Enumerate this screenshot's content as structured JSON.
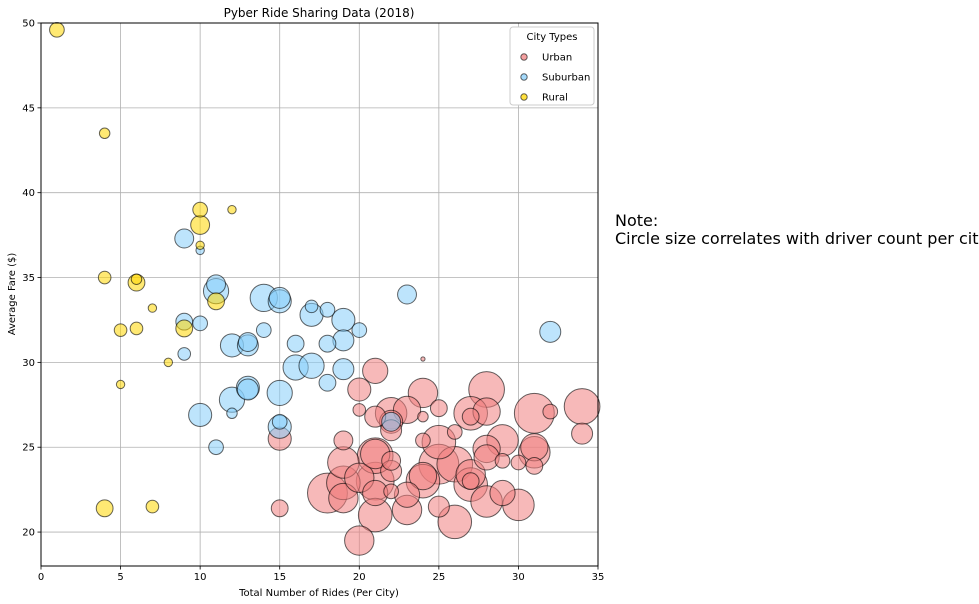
{
  "note": {
    "line1": "Note:",
    "line2": "Circle size correlates with driver count per city."
  },
  "chart_data": {
    "type": "scatter",
    "title": "Pyber Ride Sharing Data (2018)",
    "xlabel": "Total Number of Rides (Per City)",
    "ylabel": "Average Fare ($)",
    "xlim": [
      0,
      35
    ],
    "ylim": [
      18,
      50
    ],
    "xticks": [
      0,
      5,
      10,
      15,
      20,
      25,
      30,
      35
    ],
    "yticks": [
      20,
      25,
      30,
      35,
      40,
      45,
      50
    ],
    "grid": true,
    "legend": {
      "title": "City Types",
      "placement": "top-right"
    },
    "series": [
      {
        "name": "Urban",
        "color": "#F08080",
        "points": [
          {
            "x": 20,
            "y": 19.5,
            "size": 14
          },
          {
            "x": 15,
            "y": 21.4,
            "size": 8
          },
          {
            "x": 21,
            "y": 21.0,
            "size": 16
          },
          {
            "x": 26,
            "y": 20.6,
            "size": 16
          },
          {
            "x": 18,
            "y": 22.3,
            "size": 19
          },
          {
            "x": 19,
            "y": 22.0,
            "size": 14
          },
          {
            "x": 22,
            "y": 22.4,
            "size": 7
          },
          {
            "x": 23,
            "y": 22.2,
            "size": 12
          },
          {
            "x": 23,
            "y": 21.3,
            "size": 14
          },
          {
            "x": 25,
            "y": 21.5,
            "size": 10
          },
          {
            "x": 28,
            "y": 21.8,
            "size": 15
          },
          {
            "x": 29,
            "y": 22.3,
            "size": 12
          },
          {
            "x": 30,
            "y": 21.6,
            "size": 15
          },
          {
            "x": 21,
            "y": 22.3,
            "size": 12
          },
          {
            "x": 19,
            "y": 22.9,
            "size": 16
          },
          {
            "x": 20,
            "y": 23.2,
            "size": 14
          },
          {
            "x": 21,
            "y": 23.0,
            "size": 18
          },
          {
            "x": 22,
            "y": 23.6,
            "size": 10
          },
          {
            "x": 24,
            "y": 23.0,
            "size": 16
          },
          {
            "x": 24,
            "y": 23.3,
            "size": 13
          },
          {
            "x": 25,
            "y": 24.0,
            "size": 19
          },
          {
            "x": 26,
            "y": 24.0,
            "size": 17
          },
          {
            "x": 27,
            "y": 22.8,
            "size": 16
          },
          {
            "x": 27,
            "y": 23.0,
            "size": 8
          },
          {
            "x": 27,
            "y": 23.4,
            "size": 14
          },
          {
            "x": 28,
            "y": 24.4,
            "size": 12
          },
          {
            "x": 29,
            "y": 24.2,
            "size": 7
          },
          {
            "x": 30,
            "y": 24.1,
            "size": 7
          },
          {
            "x": 31,
            "y": 23.9,
            "size": 8
          },
          {
            "x": 31,
            "y": 24.7,
            "size": 15
          },
          {
            "x": 31,
            "y": 25.0,
            "size": 13
          },
          {
            "x": 19,
            "y": 24.1,
            "size": 15
          },
          {
            "x": 21,
            "y": 24.5,
            "size": 17
          },
          {
            "x": 21,
            "y": 24.6,
            "size": 14
          },
          {
            "x": 22,
            "y": 24.2,
            "size": 9
          },
          {
            "x": 24,
            "y": 25.4,
            "size": 7
          },
          {
            "x": 25,
            "y": 25.3,
            "size": 16
          },
          {
            "x": 26,
            "y": 25.9,
            "size": 7
          },
          {
            "x": 28,
            "y": 24.9,
            "size": 13
          },
          {
            "x": 29,
            "y": 25.4,
            "size": 15
          },
          {
            "x": 15,
            "y": 25.5,
            "size": 11
          },
          {
            "x": 19,
            "y": 25.4,
            "size": 9
          },
          {
            "x": 22,
            "y": 26.0,
            "size": 10
          },
          {
            "x": 22,
            "y": 26.5,
            "size": 11
          },
          {
            "x": 22,
            "y": 27.0,
            "size": 15
          },
          {
            "x": 20,
            "y": 27.2,
            "size": 6
          },
          {
            "x": 21,
            "y": 26.8,
            "size": 10
          },
          {
            "x": 23,
            "y": 27.2,
            "size": 13
          },
          {
            "x": 24,
            "y": 26.8,
            "size": 5
          },
          {
            "x": 25,
            "y": 27.3,
            "size": 8
          },
          {
            "x": 27,
            "y": 27.0,
            "size": 16
          },
          {
            "x": 27,
            "y": 26.8,
            "size": 8
          },
          {
            "x": 28,
            "y": 27.1,
            "size": 13
          },
          {
            "x": 31,
            "y": 27.0,
            "size": 19
          },
          {
            "x": 32,
            "y": 27.1,
            "size": 7
          },
          {
            "x": 34,
            "y": 27.4,
            "size": 17
          },
          {
            "x": 34,
            "y": 25.8,
            "size": 10
          },
          {
            "x": 20,
            "y": 28.4,
            "size": 11
          },
          {
            "x": 24,
            "y": 28.2,
            "size": 14
          },
          {
            "x": 28,
            "y": 28.4,
            "size": 17
          },
          {
            "x": 21,
            "y": 29.5,
            "size": 12
          },
          {
            "x": 24,
            "y": 30.2,
            "size": 2
          }
        ]
      },
      {
        "name": "Suburban",
        "color": "#87CEFA",
        "points": [
          {
            "x": 9,
            "y": 37.3,
            "size": 9
          },
          {
            "x": 10,
            "y": 36.6,
            "size": 4
          },
          {
            "x": 11,
            "y": 34.6,
            "size": 9
          },
          {
            "x": 11,
            "y": 34.2,
            "size": 12
          },
          {
            "x": 14,
            "y": 33.8,
            "size": 13
          },
          {
            "x": 15,
            "y": 33.8,
            "size": 10
          },
          {
            "x": 15,
            "y": 33.6,
            "size": 11
          },
          {
            "x": 17,
            "y": 33.3,
            "size": 6
          },
          {
            "x": 17,
            "y": 32.8,
            "size": 11
          },
          {
            "x": 18,
            "y": 33.1,
            "size": 7
          },
          {
            "x": 19,
            "y": 32.5,
            "size": 11
          },
          {
            "x": 23,
            "y": 34.0,
            "size": 9
          },
          {
            "x": 9,
            "y": 32.4,
            "size": 8
          },
          {
            "x": 10,
            "y": 32.3,
            "size": 7
          },
          {
            "x": 14,
            "y": 31.9,
            "size": 7
          },
          {
            "x": 16,
            "y": 31.1,
            "size": 8
          },
          {
            "x": 18,
            "y": 31.1,
            "size": 8
          },
          {
            "x": 19,
            "y": 31.3,
            "size": 10
          },
          {
            "x": 20,
            "y": 31.9,
            "size": 7
          },
          {
            "x": 32,
            "y": 31.8,
            "size": 10
          },
          {
            "x": 12,
            "y": 31.0,
            "size": 11
          },
          {
            "x": 13,
            "y": 31.2,
            "size": 9
          },
          {
            "x": 13,
            "y": 31.0,
            "size": 10
          },
          {
            "x": 9,
            "y": 30.5,
            "size": 6
          },
          {
            "x": 16,
            "y": 29.7,
            "size": 12
          },
          {
            "x": 17,
            "y": 29.8,
            "size": 12
          },
          {
            "x": 19,
            "y": 29.6,
            "size": 10
          },
          {
            "x": 18,
            "y": 28.8,
            "size": 8
          },
          {
            "x": 13,
            "y": 28.5,
            "size": 11
          },
          {
            "x": 13,
            "y": 28.4,
            "size": 10
          },
          {
            "x": 15,
            "y": 28.2,
            "size": 12
          },
          {
            "x": 12,
            "y": 27.8,
            "size": 12
          },
          {
            "x": 12,
            "y": 27.0,
            "size": 5
          },
          {
            "x": 10,
            "y": 26.9,
            "size": 11
          },
          {
            "x": 15,
            "y": 26.5,
            "size": 7
          },
          {
            "x": 15,
            "y": 26.2,
            "size": 11
          },
          {
            "x": 22,
            "y": 26.5,
            "size": 9
          },
          {
            "x": 11,
            "y": 25.0,
            "size": 7
          }
        ]
      },
      {
        "name": "Rural",
        "color": "#FFD700",
        "points": [
          {
            "x": 1,
            "y": 49.6,
            "size": 7
          },
          {
            "x": 4,
            "y": 43.5,
            "size": 5
          },
          {
            "x": 10,
            "y": 39.0,
            "size": 7
          },
          {
            "x": 12,
            "y": 39.0,
            "size": 4
          },
          {
            "x": 10,
            "y": 38.1,
            "size": 9
          },
          {
            "x": 10,
            "y": 36.9,
            "size": 4
          },
          {
            "x": 4,
            "y": 35.0,
            "size": 6
          },
          {
            "x": 6,
            "y": 34.9,
            "size": 5
          },
          {
            "x": 6,
            "y": 34.7,
            "size": 8
          },
          {
            "x": 11,
            "y": 33.6,
            "size": 8
          },
          {
            "x": 7,
            "y": 33.2,
            "size": 4
          },
          {
            "x": 5,
            "y": 31.9,
            "size": 6
          },
          {
            "x": 6,
            "y": 32.0,
            "size": 6
          },
          {
            "x": 9,
            "y": 32.0,
            "size": 8
          },
          {
            "x": 8,
            "y": 30.0,
            "size": 4
          },
          {
            "x": 5,
            "y": 28.7,
            "size": 4
          },
          {
            "x": 4,
            "y": 21.4,
            "size": 8
          },
          {
            "x": 7,
            "y": 21.5,
            "size": 6
          }
        ]
      }
    ]
  }
}
